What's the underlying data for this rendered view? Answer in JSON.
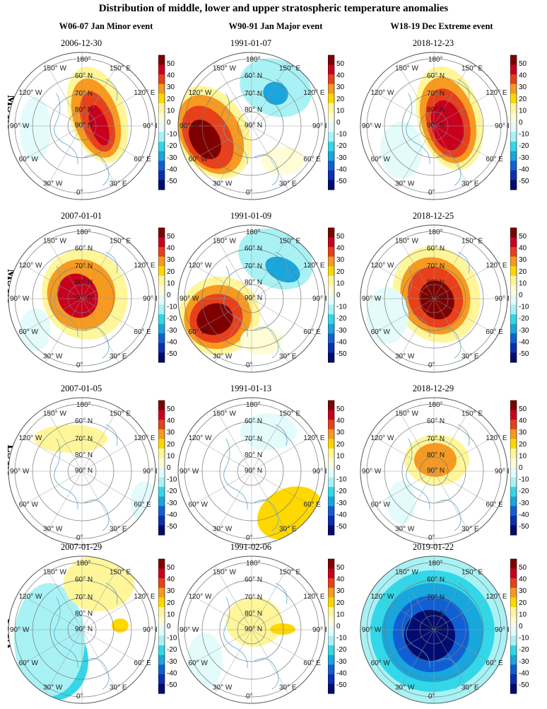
{
  "figure_title": "Distribution of middle, lower and upper stratospheric temperature anomalies",
  "columns": [
    "W06-07 Jan Minor event",
    "W90-91 Jan Major event",
    "W18-19 Dec Extreme event"
  ],
  "rows": [
    "MSTA",
    "MSTA",
    "LSTA",
    "USTA"
  ],
  "colorbar": {
    "ticks": [
      "50",
      "40",
      "30",
      "20",
      "10",
      "0",
      "-10",
      "-20",
      "-30",
      "-40",
      "-50"
    ],
    "colors": [
      "#7f0000",
      "#c8001e",
      "#e8401a",
      "#f79a1f",
      "#ffd800",
      "#fff69a",
      "#fffcd6",
      "#e3fbfb",
      "#a8f2f5",
      "#33d7e8",
      "#18a6dd",
      "#1060d4",
      "#0a2fb0",
      "#020c70"
    ]
  },
  "map_labels": {
    "lat": [
      "90° N",
      "80° N",
      "70° N",
      "60° N"
    ],
    "lon": [
      "180°",
      "150° E",
      "120° E",
      "90° E",
      "60° E",
      "30° E",
      "0°",
      "30° W",
      "60° W",
      "90° W",
      "120° W",
      "150° W"
    ]
  },
  "panels": [
    {
      "row": 0,
      "col": 0,
      "date": "2006-12-30"
    },
    {
      "row": 0,
      "col": 1,
      "date": "1991-01-07"
    },
    {
      "row": 0,
      "col": 2,
      "date": "2018-12-23"
    },
    {
      "row": 1,
      "col": 0,
      "date": "2007-01-01"
    },
    {
      "row": 1,
      "col": 1,
      "date": "1991-01-09"
    },
    {
      "row": 1,
      "col": 2,
      "date": "2018-12-25"
    },
    {
      "row": 2,
      "col": 0,
      "date": "2007-01-05"
    },
    {
      "row": 2,
      "col": 1,
      "date": "1991-01-13"
    },
    {
      "row": 2,
      "col": 2,
      "date": "2018-12-29"
    },
    {
      "row": 3,
      "col": 0,
      "date": "2007-01-29"
    },
    {
      "row": 3,
      "col": 1,
      "date": "1991-02-06"
    },
    {
      "row": 3,
      "col": 2,
      "date": "2019-01-22"
    }
  ]
}
